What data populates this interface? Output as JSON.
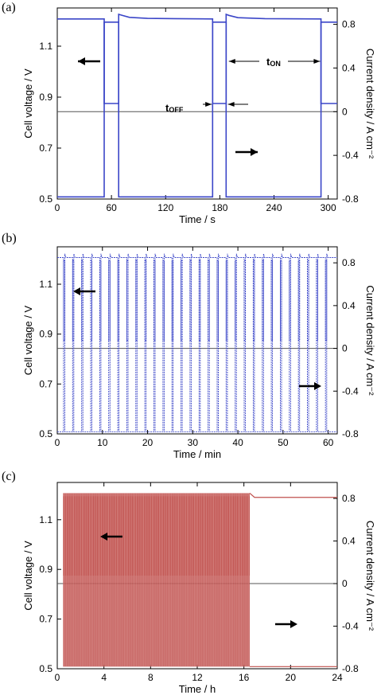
{
  "chart_data": [
    {
      "type": "line",
      "panel_label": "(a)",
      "xlabel": "Time / s",
      "ylabel_left": "Cell voltage / V",
      "ylabel_right": "Current density / A cm⁻²",
      "xlim": [
        0,
        310
      ],
      "ylim_left": [
        0.5,
        1.25
      ],
      "ylim_right": [
        -0.8,
        0.95
      ],
      "xticks": [
        "0",
        "60",
        "120",
        "180",
        "240",
        "300"
      ],
      "yticks_left": [
        "0.5",
        "0.7",
        "0.9",
        "1.1"
      ],
      "yticks_right": [
        "-0.8",
        "-0.4",
        "0",
        "0.4",
        "0.8"
      ],
      "grid": false,
      "line_color": "#3b46c8",
      "series": [
        {
          "x": [
            0,
            52,
            52,
            68,
            68,
            71,
            80,
            100,
            130,
            172,
            172,
            187,
            187,
            190,
            200,
            230,
            292,
            292,
            310
          ],
          "y_voltage": [
            1.207,
            1.207,
            0.875,
            0.875,
            1.225,
            1.222,
            1.213,
            1.209,
            1.208,
            1.207,
            0.875,
            0.875,
            1.225,
            1.221,
            1.212,
            1.208,
            1.207,
            0.875,
            0.875
          ],
          "y_current": [
            -0.78,
            -0.78,
            0.82,
            0.82,
            -0.78,
            -0.78,
            -0.78,
            -0.78,
            -0.78,
            -0.78,
            0.82,
            0.82,
            -0.78,
            -0.78,
            -0.78,
            -0.78,
            -0.78,
            0.82,
            0.82
          ]
        }
      ],
      "annotations": {
        "t_off_main": "t",
        "t_off_sub": "OFF",
        "t_on_main": "t",
        "t_on_sub": "ON"
      }
    },
    {
      "type": "line",
      "panel_label": "(b)",
      "xlabel": "Time / min",
      "ylabel_left": "Cell voltage / V",
      "ylabel_right": "Current density / A cm⁻²",
      "xlim": [
        0,
        62
      ],
      "ylim_left": [
        0.5,
        1.25
      ],
      "ylim_right": [
        -0.8,
        0.95
      ],
      "xticks": [
        "0",
        "10",
        "20",
        "30",
        "40",
        "50",
        "60"
      ],
      "yticks_left": [
        "0.5",
        "0.7",
        "0.9",
        "1.1"
      ],
      "yticks_right": [
        "-0.8",
        "-0.4",
        "0",
        "0.4",
        "0.8"
      ],
      "grid": false,
      "line_color": "#3b46c8",
      "cycle_period_min": 2,
      "cycle_off_min": 0.27,
      "cycles": 30,
      "voltage_on": 1.207,
      "voltage_off": 0.875,
      "current_on": -0.78,
      "current_off": 0.82
    },
    {
      "type": "line",
      "panel_label": "(c)",
      "xlabel": "Time / h",
      "ylabel_left": "Cell voltage / V",
      "ylabel_right": "Current density / A cm⁻²",
      "xlim": [
        0,
        24
      ],
      "ylim_left": [
        0.5,
        1.25
      ],
      "ylim_right": [
        -0.8,
        0.95
      ],
      "xticks": [
        "0",
        "4",
        "8",
        "12",
        "16",
        "20",
        "24"
      ],
      "yticks_left": [
        "0.5",
        "0.7",
        "0.9",
        "1.1"
      ],
      "yticks_right": [
        "-0.8",
        "-0.4",
        "0",
        "0.4",
        "0.8"
      ],
      "grid": false,
      "line_color": "#c0504d",
      "cycling_start_h": 0.5,
      "cycling_end_h": 16.5,
      "voltage_on": 1.207,
      "voltage_off": 0.875,
      "current_on": -0.78,
      "current_off": 0.82,
      "steady_voltage_after_h": 1.19,
      "steady_current_after_h": -0.78
    }
  ]
}
